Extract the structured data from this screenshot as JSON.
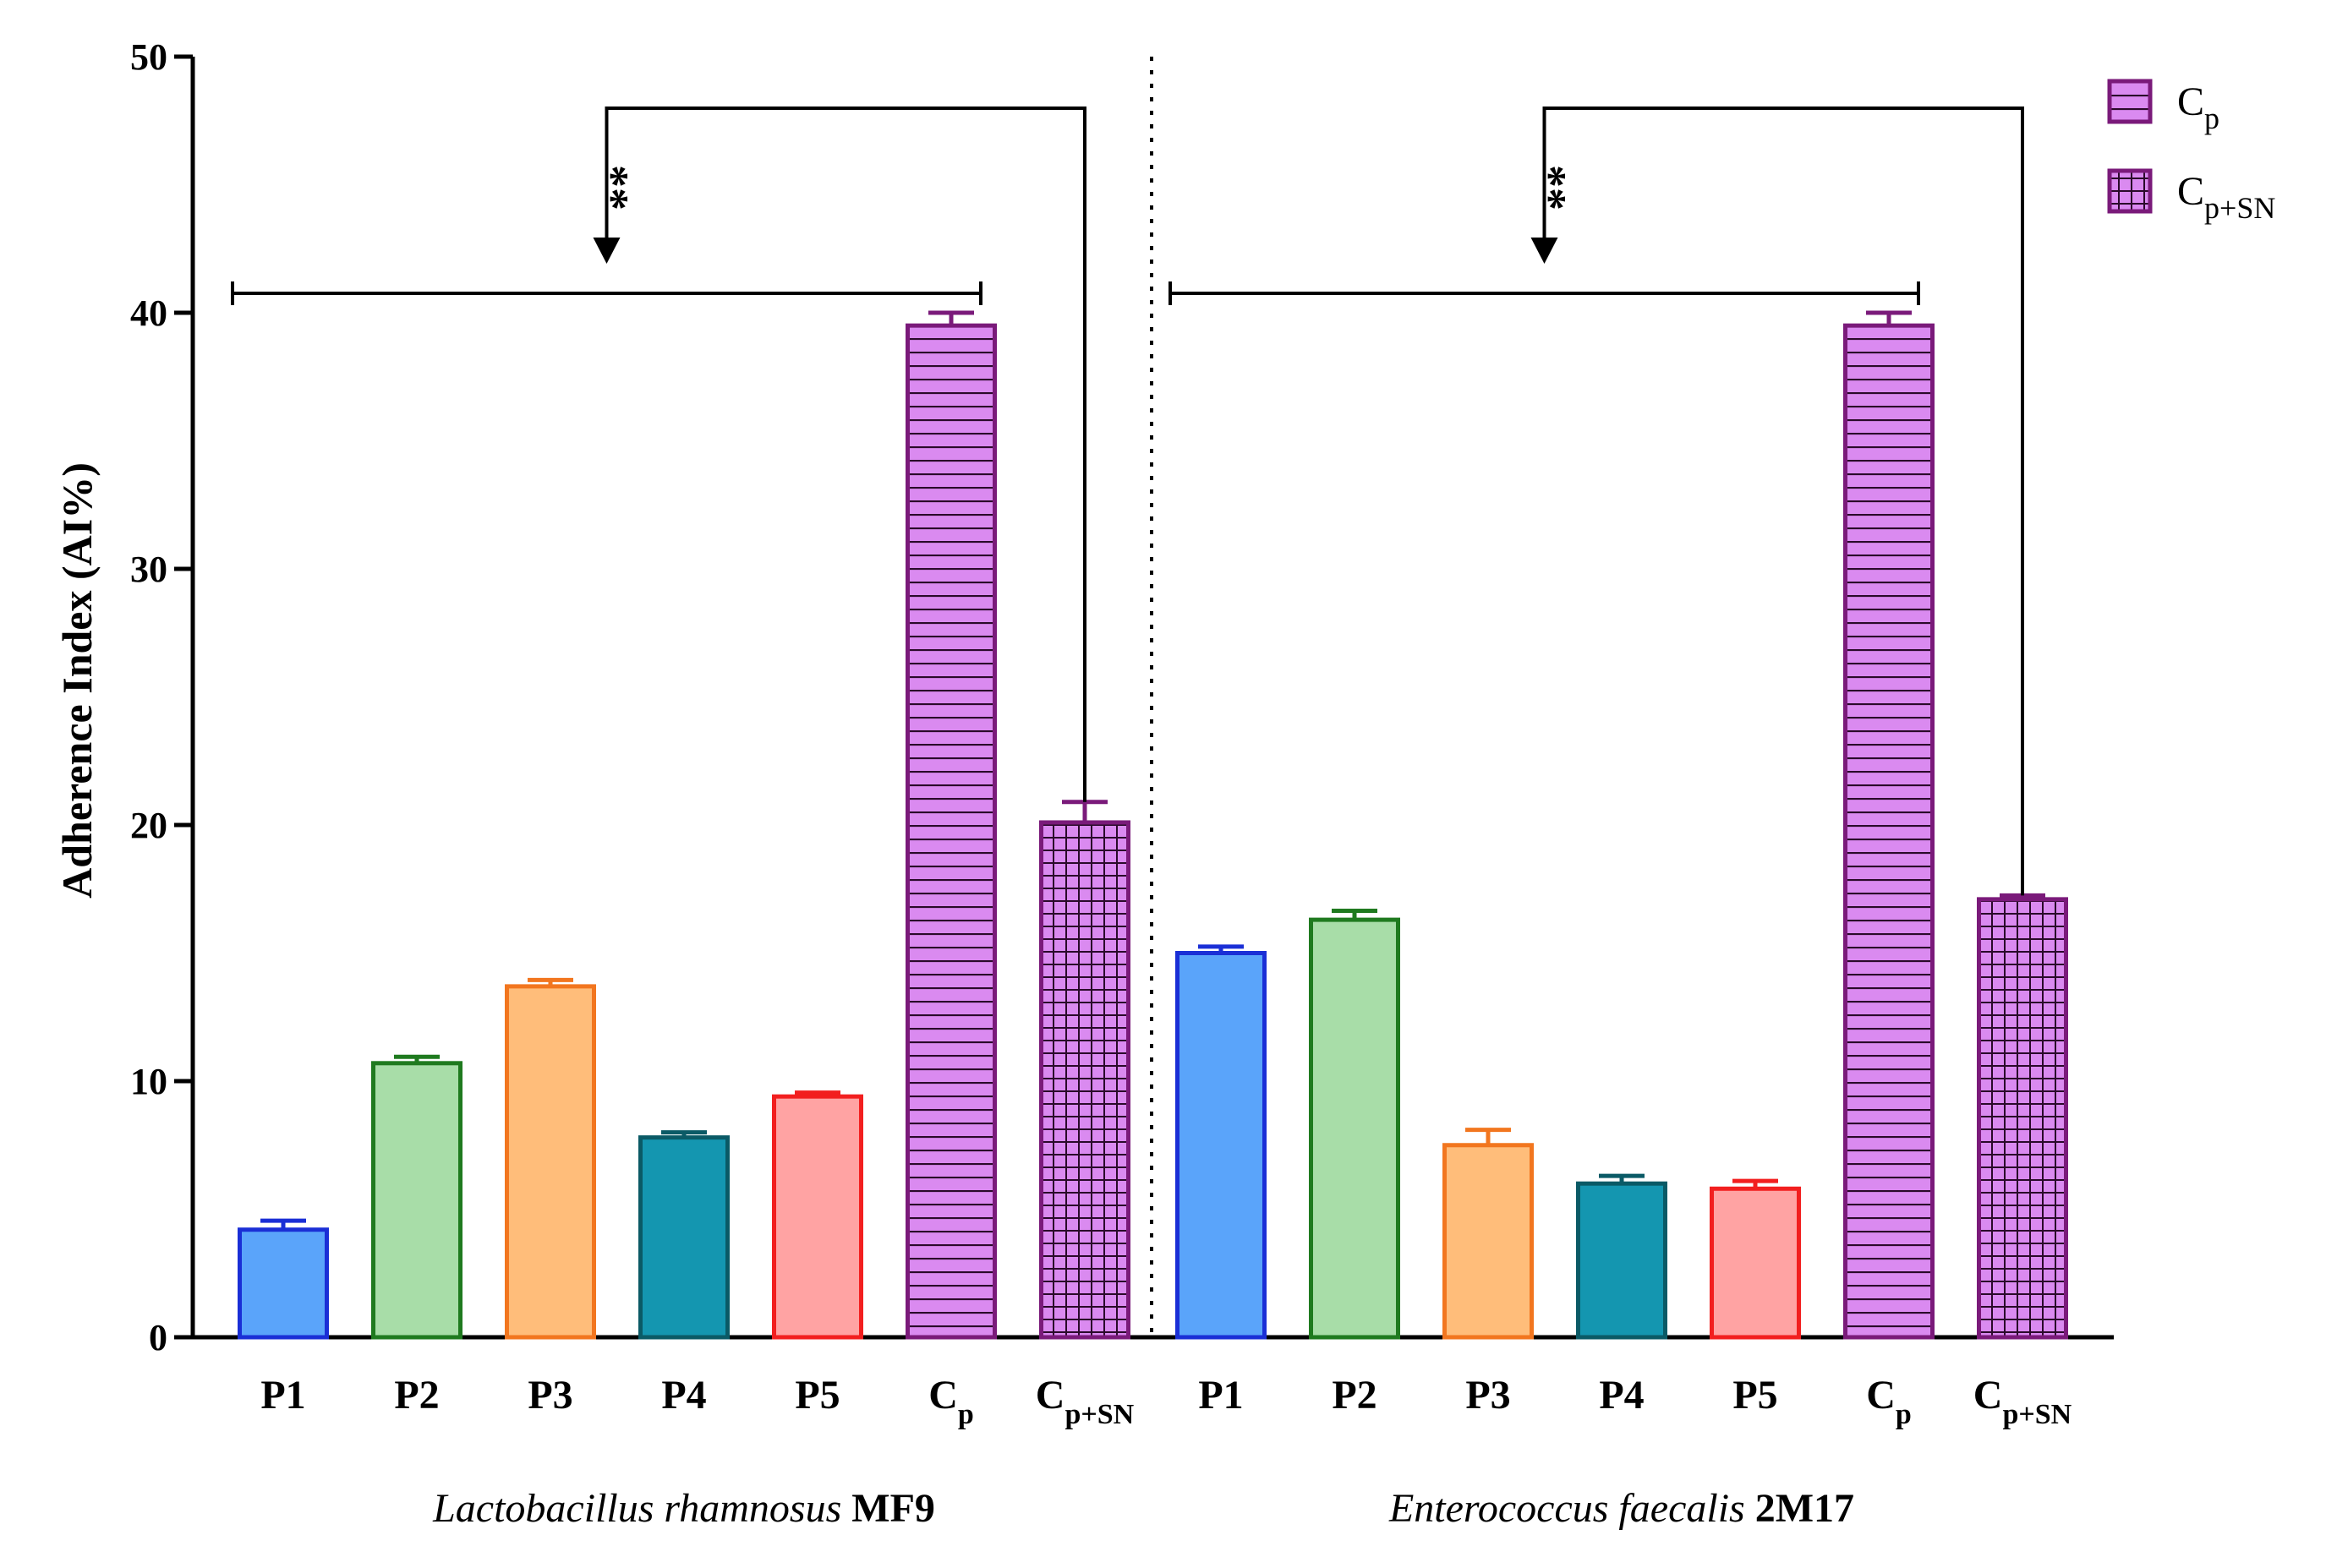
{
  "chart_data": {
    "type": "bar",
    "title": "",
    "xlabel": "",
    "ylabel": "Adherence Index (AI%)",
    "ylim": [
      0,
      50
    ],
    "yticks": [
      0,
      10,
      20,
      30,
      40,
      50
    ],
    "grid": false,
    "legend_position": "top-right",
    "legend": [
      {
        "base": "C",
        "sub": "p",
        "pattern": "horizontal-lines",
        "color": "#DA8AF0"
      },
      {
        "base": "C",
        "sub": "p+SN",
        "pattern": "grid",
        "color": "#DA8AF0"
      }
    ],
    "groups": [
      {
        "name": "Lactobacillus rhamnosus",
        "strain": "MF9",
        "bars": [
          {
            "base": "P1",
            "sub": "",
            "value": 4.2,
            "error": 0.35,
            "fill": "#5AA4FA",
            "stroke": "#1A2FD6",
            "pattern": "none"
          },
          {
            "base": "P2",
            "sub": "",
            "value": 10.7,
            "error": 0.25,
            "fill": "#A8DDA8",
            "stroke": "#1F7A1F",
            "pattern": "none"
          },
          {
            "base": "P3",
            "sub": "",
            "value": 13.7,
            "error": 0.25,
            "fill": "#FFBD7A",
            "stroke": "#F2761F",
            "pattern": "none"
          },
          {
            "base": "P4",
            "sub": "",
            "value": 7.8,
            "error": 0.2,
            "fill": "#1496B0",
            "stroke": "#0A5A66",
            "pattern": "none"
          },
          {
            "base": "P5",
            "sub": "",
            "value": 9.4,
            "error": 0.15,
            "fill": "#FFA3A3",
            "stroke": "#F21F1F",
            "pattern": "none"
          },
          {
            "base": "C",
            "sub": "p",
            "value": 39.5,
            "error": 0.5,
            "fill": "#DA8AF0",
            "stroke": "#7A1A7A",
            "pattern": "horizontal-lines"
          },
          {
            "base": "C",
            "sub": "p+SN",
            "value": 20.1,
            "error": 0.8,
            "fill": "#DA8AF0",
            "stroke": "#7A1A7A",
            "pattern": "grid"
          }
        ],
        "significance": "**"
      },
      {
        "name": "Enterococcus faecalis",
        "strain": "2M17",
        "bars": [
          {
            "base": "P1",
            "sub": "",
            "value": 15.0,
            "error": 0.25,
            "fill": "#5AA4FA",
            "stroke": "#1A2FD6",
            "pattern": "none"
          },
          {
            "base": "P2",
            "sub": "",
            "value": 16.3,
            "error": 0.35,
            "fill": "#A8DDA8",
            "stroke": "#1F7A1F",
            "pattern": "none"
          },
          {
            "base": "P3",
            "sub": "",
            "value": 7.5,
            "error": 0.6,
            "fill": "#FFBD7A",
            "stroke": "#F2761F",
            "pattern": "none"
          },
          {
            "base": "P4",
            "sub": "",
            "value": 6.0,
            "error": 0.3,
            "fill": "#1496B0",
            "stroke": "#0A5A66",
            "pattern": "none"
          },
          {
            "base": "P5",
            "sub": "",
            "value": 5.8,
            "error": 0.3,
            "fill": "#FFA3A3",
            "stroke": "#F21F1F",
            "pattern": "none"
          },
          {
            "base": "C",
            "sub": "p",
            "value": 39.5,
            "error": 0.5,
            "fill": "#DA8AF0",
            "stroke": "#7A1A7A",
            "pattern": "horizontal-lines"
          },
          {
            "base": "C",
            "sub": "p+SN",
            "value": 17.1,
            "error": 0.15,
            "fill": "#DA8AF0",
            "stroke": "#7A1A7A",
            "pattern": "grid"
          }
        ],
        "significance": "**"
      }
    ]
  }
}
